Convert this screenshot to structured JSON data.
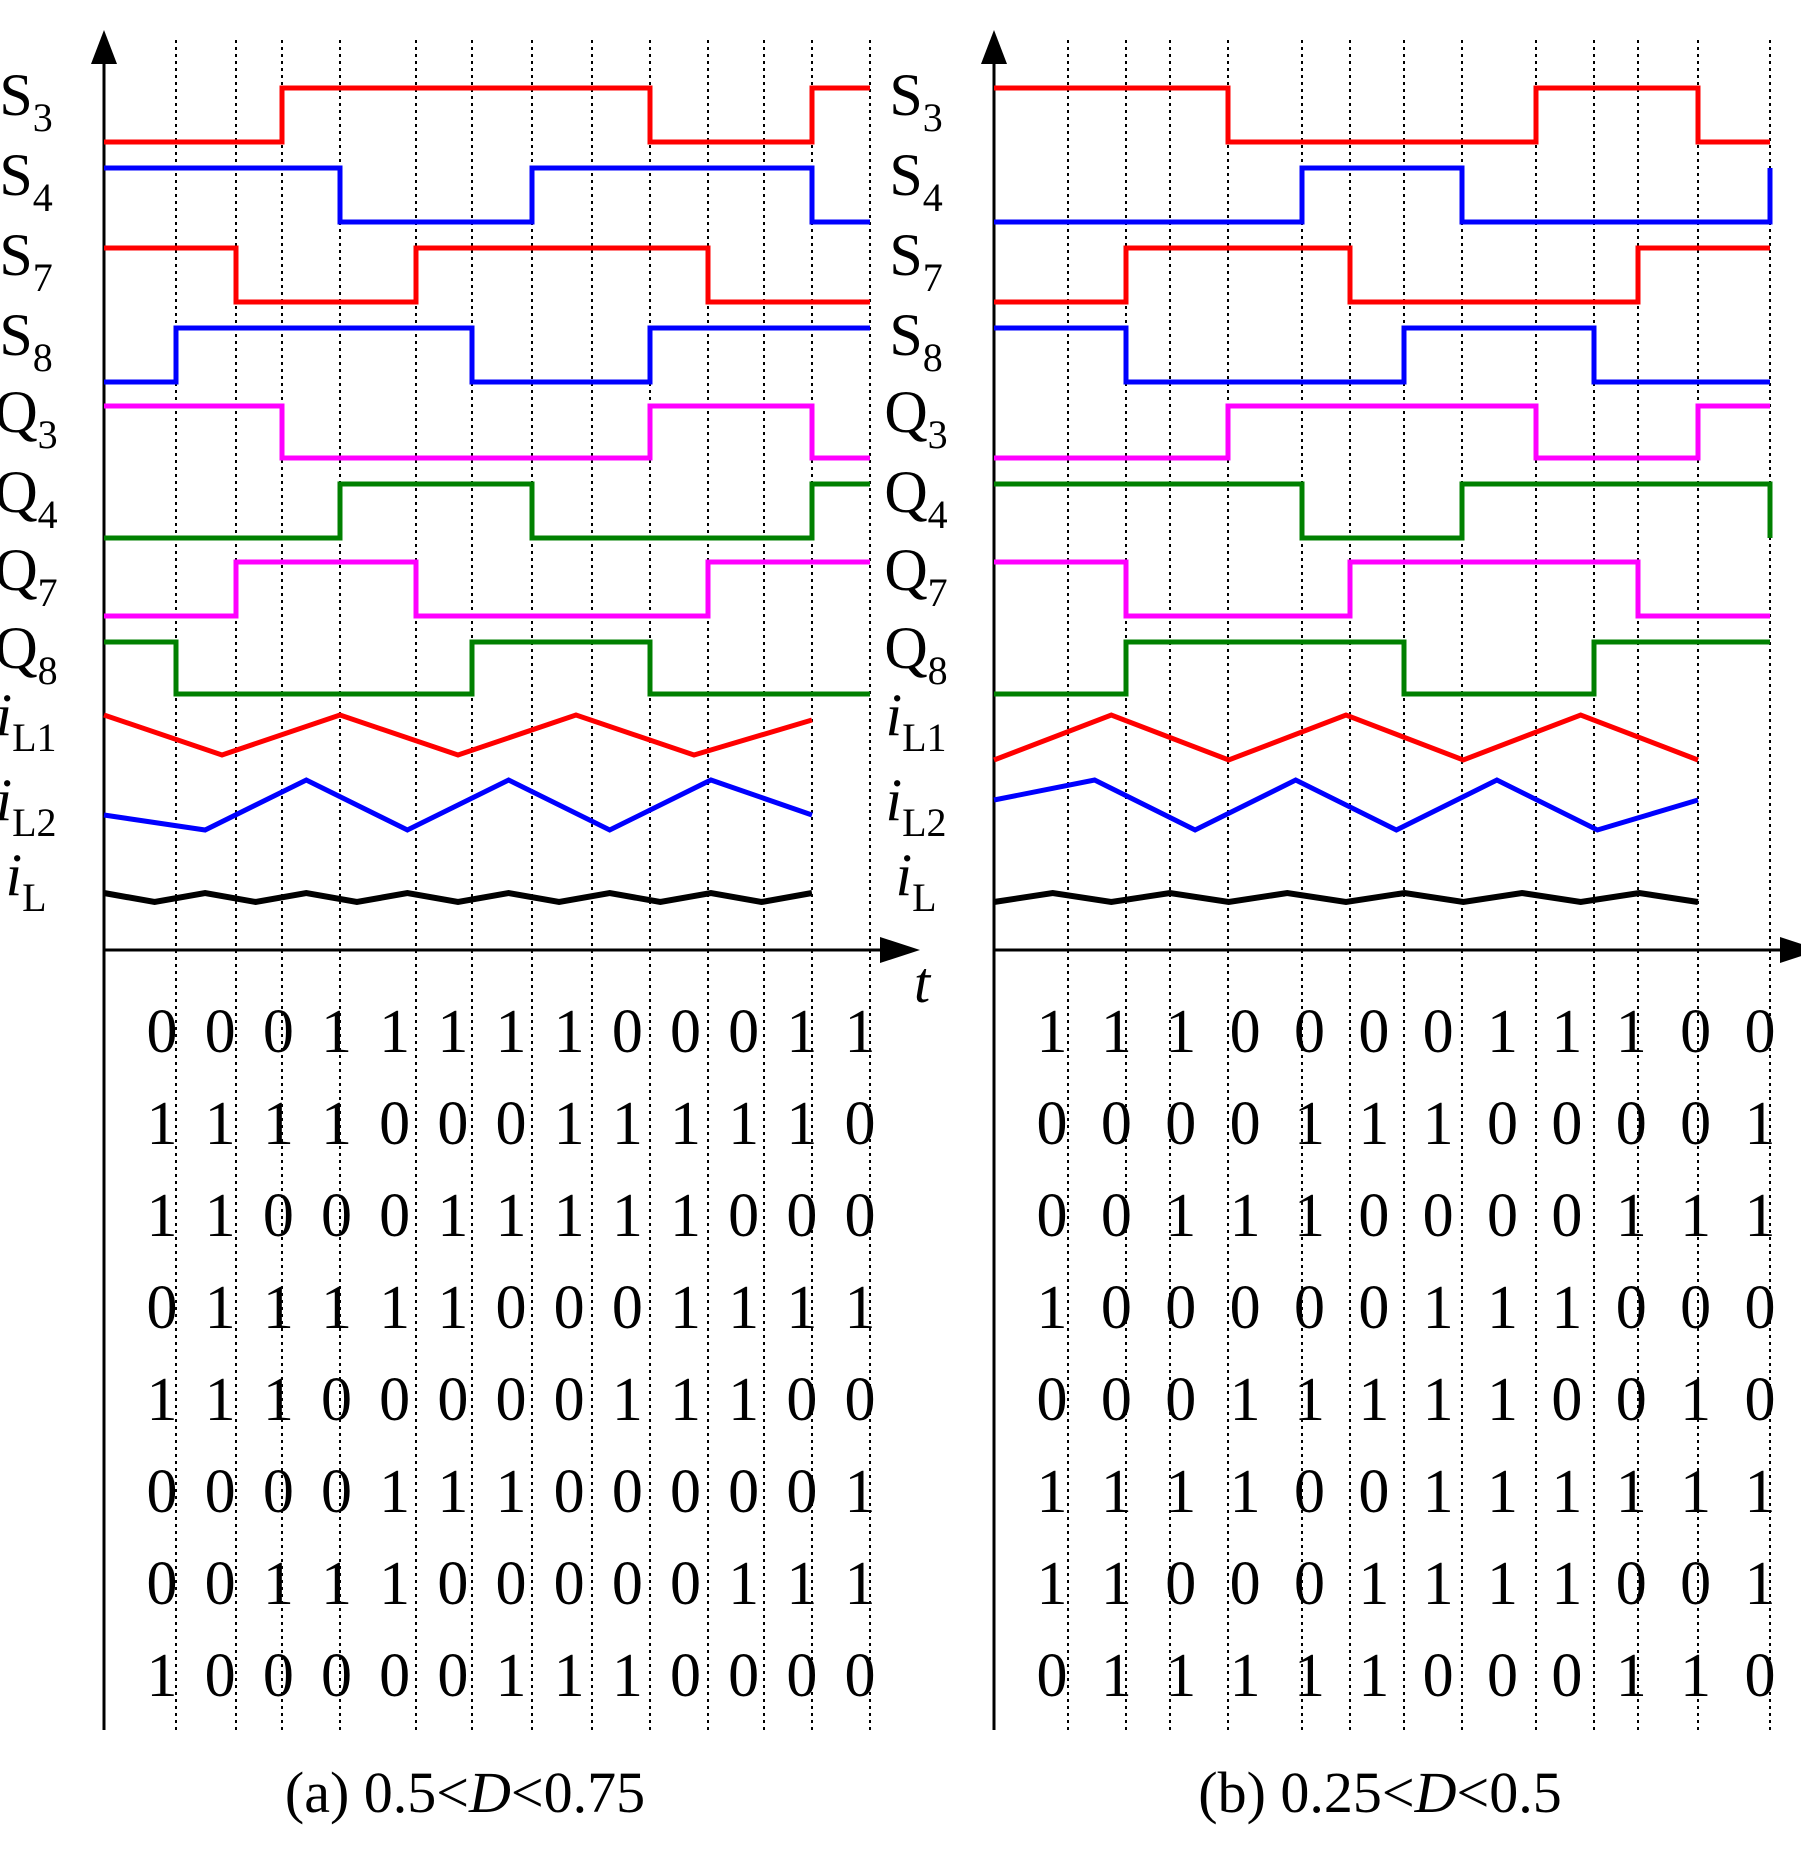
{
  "colors": {
    "S3": "#ff0000",
    "S4": "#0000ff",
    "S7": "#ff0000",
    "S8": "#0000ff",
    "Q3": "#ff00ff",
    "Q4": "#008000",
    "Q7": "#ff00ff",
    "Q8": "#008000",
    "iL1": "#ff0000",
    "iL2": "#0000ff",
    "iL": "#000000"
  },
  "signal_labels": [
    {
      "key": "S3",
      "base": "S",
      "sub": "3",
      "italic": false
    },
    {
      "key": "S4",
      "base": "S",
      "sub": "4",
      "italic": false
    },
    {
      "key": "S7",
      "base": "S",
      "sub": "7",
      "italic": false
    },
    {
      "key": "S8",
      "base": "S",
      "sub": "8",
      "italic": false
    },
    {
      "key": "Q3",
      "base": "Q",
      "sub": "3",
      "italic": false
    },
    {
      "key": "Q4",
      "base": "Q",
      "sub": "4",
      "italic": false
    },
    {
      "key": "Q7",
      "base": "Q",
      "sub": "7",
      "italic": false
    },
    {
      "key": "Q8",
      "base": "Q",
      "sub": "8",
      "italic": false
    },
    {
      "key": "iL1",
      "base": "i",
      "sub": "L1",
      "italic": true
    },
    {
      "key": "iL2",
      "base": "i",
      "sub": "L2",
      "italic": true
    },
    {
      "key": "iL",
      "base": "i",
      "sub": "L",
      "italic": true
    }
  ],
  "time_axis_label": "t",
  "panels": [
    {
      "id": "a",
      "caption_prefix": "(a) 0.5<",
      "caption_var": "D",
      "caption_suffix": "<0.75",
      "waveforms": {
        "S3": [
          0,
          0,
          0,
          1,
          1,
          1,
          1,
          1,
          1,
          0,
          0,
          0,
          1,
          1
        ],
        "S4": [
          1,
          1,
          1,
          1,
          0,
          0,
          0,
          1,
          1,
          1,
          1,
          1,
          0,
          0
        ],
        "S7": [
          1,
          1,
          0,
          0,
          0,
          1,
          1,
          1,
          1,
          1,
          0,
          0,
          0,
          0
        ],
        "S8": [
          0,
          1,
          1,
          1,
          1,
          1,
          0,
          0,
          0,
          1,
          1,
          1,
          1,
          1
        ],
        "Q3": [
          1,
          1,
          1,
          0,
          0,
          0,
          0,
          0,
          0,
          1,
          1,
          1,
          0,
          0
        ],
        "Q4": [
          0,
          0,
          0,
          0,
          1,
          1,
          1,
          0,
          0,
          0,
          0,
          0,
          1,
          1
        ],
        "Q7": [
          0,
          0,
          1,
          1,
          1,
          0,
          0,
          0,
          0,
          0,
          1,
          1,
          1,
          1
        ],
        "Q8": [
          1,
          0,
          0,
          0,
          0,
          0,
          1,
          1,
          1,
          0,
          0,
          0,
          0,
          0
        ]
      },
      "currents": {
        "iL1": [
          0.75,
          0.35,
          0.75,
          0.35,
          0.75,
          0.35,
          0.7
        ],
        "iL2": [
          0.45,
          0.3,
          0.8,
          0.3,
          0.8,
          0.3,
          0.8,
          0.45
        ],
        "iL": [
          0.45,
          0.3,
          0.45,
          0.3,
          0.45,
          0.3,
          0.45,
          0.3,
          0.45,
          0.3,
          0.45,
          0.3,
          0.45,
          0.3,
          0.45
        ]
      },
      "bits": [
        [
          "0",
          "0",
          "0",
          "1",
          "1",
          "1",
          "1",
          "1",
          "0",
          "0",
          "0",
          "1",
          "1"
        ],
        [
          "1",
          "1",
          "1",
          "1",
          "0",
          "0",
          "0",
          "1",
          "1",
          "1",
          "1",
          "1",
          "0"
        ],
        [
          "1",
          "1",
          "0",
          "0",
          "0",
          "1",
          "1",
          "1",
          "1",
          "1",
          "0",
          "0",
          "0"
        ],
        [
          "0",
          "1",
          "1",
          "1",
          "1",
          "1",
          "0",
          "0",
          "0",
          "1",
          "1",
          "1",
          "1"
        ],
        [
          "1",
          "1",
          "1",
          "0",
          "0",
          "0",
          "0",
          "0",
          "1",
          "1",
          "1",
          "0",
          "0"
        ],
        [
          "0",
          "0",
          "0",
          "0",
          "1",
          "1",
          "1",
          "0",
          "0",
          "0",
          "0",
          "0",
          "1"
        ],
        [
          "0",
          "0",
          "1",
          "1",
          "1",
          "0",
          "0",
          "0",
          "0",
          "0",
          "1",
          "1",
          "1"
        ],
        [
          "1",
          "0",
          "0",
          "0",
          "0",
          "0",
          "1",
          "1",
          "1",
          "0",
          "0",
          "0",
          "0"
        ]
      ]
    },
    {
      "id": "b",
      "caption_prefix": "(b) 0.25<",
      "caption_var": "D",
      "caption_suffix": "<0.5",
      "waveforms": {
        "S3": [
          1,
          1,
          1,
          1,
          0,
          0,
          0,
          0,
          0,
          1,
          1,
          1,
          0,
          0
        ],
        "S4": [
          0,
          0,
          0,
          0,
          0,
          1,
          1,
          1,
          0,
          0,
          0,
          0,
          0,
          1
        ],
        "S7": [
          0,
          0,
          1,
          1,
          1,
          1,
          0,
          0,
          0,
          0,
          0,
          1,
          1,
          1
        ],
        "S8": [
          1,
          1,
          0,
          0,
          0,
          0,
          0,
          1,
          1,
          1,
          0,
          0,
          0,
          0
        ],
        "Q3": [
          0,
          0,
          0,
          0,
          1,
          1,
          1,
          1,
          1,
          0,
          0,
          0,
          1,
          1
        ],
        "Q4": [
          1,
          1,
          1,
          1,
          1,
          0,
          0,
          0,
          1,
          1,
          1,
          1,
          1,
          0
        ],
        "Q7": [
          1,
          1,
          0,
          0,
          0,
          0,
          1,
          1,
          1,
          1,
          1,
          0,
          0,
          0
        ],
        "Q8": [
          0,
          0,
          1,
          1,
          1,
          1,
          1,
          0,
          0,
          0,
          1,
          1,
          1,
          1
        ]
      },
      "currents": {
        "iL1": [
          0.3,
          0.75,
          0.3,
          0.75,
          0.3,
          0.75,
          0.3
        ],
        "iL2": [
          0.6,
          0.8,
          0.3,
          0.8,
          0.3,
          0.8,
          0.3,
          0.6
        ],
        "iL": [
          0.3,
          0.45,
          0.3,
          0.45,
          0.3,
          0.45,
          0.3,
          0.45,
          0.3,
          0.45,
          0.3,
          0.45,
          0.3
        ]
      },
      "bits": [
        [
          "1",
          "1",
          "1",
          "0",
          "0",
          "0",
          "0",
          "1",
          "1",
          "1",
          "0",
          "0"
        ],
        [
          "0",
          "0",
          "0",
          "0",
          "1",
          "1",
          "1",
          "0",
          "0",
          "0",
          "0",
          "1"
        ],
        [
          "0",
          "0",
          "1",
          "1",
          "1",
          "0",
          "0",
          "0",
          "0",
          "1",
          "1",
          "1"
        ],
        [
          "1",
          "0",
          "0",
          "0",
          "0",
          "0",
          "1",
          "1",
          "1",
          "0",
          "0",
          "0"
        ],
        [
          "0",
          "0",
          "0",
          "1",
          "1",
          "1",
          "1",
          "1",
          "0",
          "0",
          "1",
          "0"
        ],
        [
          "1",
          "1",
          "1",
          "1",
          "0",
          "0",
          "1",
          "1",
          "1",
          "1",
          "1",
          "1"
        ],
        [
          "1",
          "1",
          "0",
          "0",
          "0",
          "1",
          "1",
          "1",
          "1",
          "0",
          "0",
          "1"
        ],
        [
          "0",
          "1",
          "1",
          "1",
          "1",
          "1",
          "0",
          "0",
          "0",
          "1",
          "1",
          "0"
        ]
      ]
    }
  ]
}
